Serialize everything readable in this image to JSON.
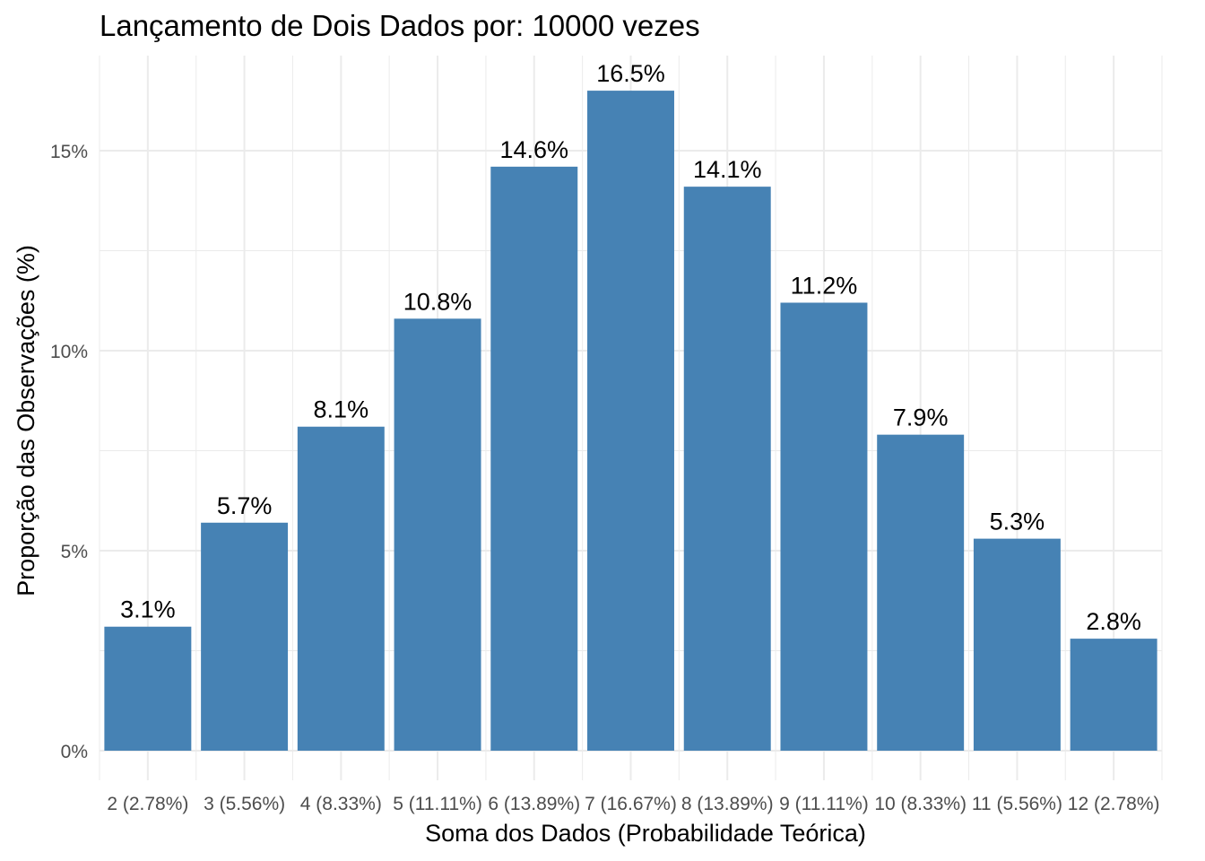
{
  "chart_data": {
    "type": "bar",
    "title": "Lançamento de Dois Dados por: 10000 vezes",
    "xlabel": "Soma dos Dados (Probabilidade Teórica)",
    "ylabel": "Proporção das Observações (%)",
    "categories": [
      "2 (2.78%)",
      "3 (5.56%)",
      "4 (8.33%)",
      "5 (11.11%)",
      "6 (13.89%)",
      "7 (16.67%)",
      "8 (13.89%)",
      "9 (11.11%)",
      "10 (8.33%)",
      "11 (5.56%)",
      "12 (2.78%)"
    ],
    "values": [
      3.1,
      5.7,
      8.1,
      10.8,
      14.6,
      16.5,
      14.1,
      11.2,
      7.9,
      5.3,
      2.8
    ],
    "data_labels": [
      "3.1%",
      "5.7%",
      "8.1%",
      "10.8%",
      "14.6%",
      "16.5%",
      "14.1%",
      "11.2%",
      "7.9%",
      "5.3%",
      "2.8%"
    ],
    "yticks": [
      0,
      5,
      10,
      15
    ],
    "ytick_labels": [
      "0%",
      "5%",
      "10%",
      "15%"
    ],
    "ylim": [
      0,
      17.3
    ],
    "grid": true,
    "bar_color": "#4682b4",
    "grid_color": "#ebebeb"
  }
}
